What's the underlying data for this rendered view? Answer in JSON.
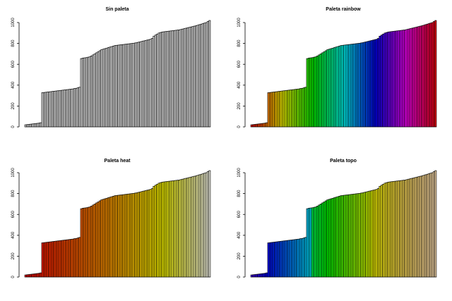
{
  "figure": {
    "layout": "2x2 grid of bar plots"
  },
  "chart_data": [
    {
      "type": "bar",
      "title": "Sin paleta",
      "palette": "none",
      "fill_color": "#e6e6e6",
      "yticks": [
        "0",
        "200",
        "400",
        "600",
        "800",
        "1000"
      ],
      "ylim": [
        0,
        1000
      ],
      "xlabel": "",
      "ylabel": "",
      "values_ref": "shared_values"
    },
    {
      "type": "bar",
      "title": "Paleta rainbow",
      "palette": "rainbow",
      "yticks": [
        "0",
        "200",
        "400",
        "600",
        "800",
        "1000"
      ],
      "ylim": [
        0,
        1000
      ],
      "xlabel": "",
      "ylabel": "",
      "values_ref": "shared_values"
    },
    {
      "type": "bar",
      "title": "Paleta heat",
      "palette": "heat",
      "yticks": [
        "0",
        "200",
        "400",
        "600",
        "800",
        "1000"
      ],
      "ylim": [
        0,
        1000
      ],
      "xlabel": "",
      "ylabel": "",
      "values_ref": "shared_values"
    },
    {
      "type": "bar",
      "title": "Paleta topo",
      "palette": "topo",
      "yticks": [
        "0",
        "200",
        "400",
        "600",
        "800",
        "1000"
      ],
      "ylim": [
        0,
        1000
      ],
      "xlabel": "",
      "ylabel": "",
      "values_ref": "shared_values"
    }
  ],
  "shared_values": [
    20,
    22,
    24,
    26,
    28,
    30,
    32,
    34,
    36,
    40,
    328,
    330,
    332,
    334,
    336,
    338,
    340,
    342,
    344,
    346,
    348,
    350,
    352,
    354,
    356,
    358,
    360,
    362,
    364,
    368,
    370,
    375,
    380,
    655,
    660,
    662,
    664,
    668,
    672,
    680,
    690,
    700,
    710,
    720,
    730,
    740,
    745,
    750,
    755,
    760,
    765,
    770,
    775,
    780,
    782,
    784,
    786,
    788,
    790,
    792,
    794,
    796,
    798,
    800,
    802,
    805,
    808,
    812,
    816,
    820,
    824,
    828,
    832,
    836,
    840,
    848,
    870,
    880,
    890,
    900,
    905,
    910,
    912,
    914,
    916,
    918,
    920,
    922,
    924,
    926,
    928,
    930,
    934,
    938,
    942,
    946,
    950,
    954,
    958,
    962,
    966,
    970,
    975,
    980,
    985,
    990,
    995,
    1000,
    1010,
    1020
  ]
}
